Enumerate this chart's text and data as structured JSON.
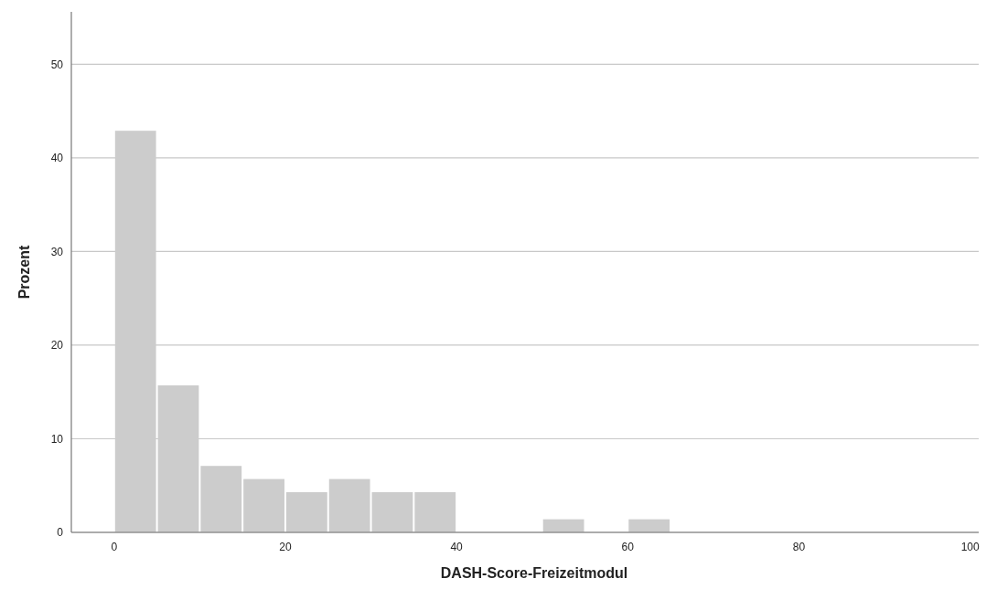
{
  "chart_data": {
    "type": "histogram",
    "xlabel": "DASH-Score-Freizeitmodul",
    "ylabel": "Prozent",
    "bins": [
      0,
      5,
      10,
      15,
      20,
      25,
      30,
      35,
      40,
      45,
      50,
      55,
      60,
      65
    ],
    "values": [
      42.9,
      15.7,
      7.1,
      5.7,
      4.3,
      5.7,
      4.3,
      4.3,
      0,
      0,
      1.4,
      0,
      1.4
    ],
    "color": "#cccccc",
    "xlim": [
      -5,
      101
    ],
    "ylim": [
      0,
      55.6
    ],
    "xticks": [
      0,
      20,
      40,
      60,
      80,
      100
    ],
    "yticks": [
      0,
      10,
      20,
      30,
      40,
      50
    ],
    "grid": "y"
  }
}
